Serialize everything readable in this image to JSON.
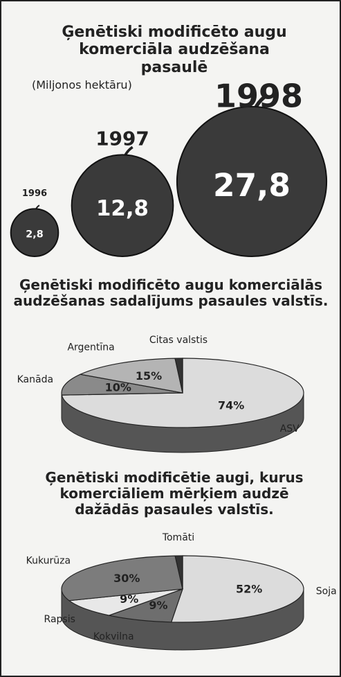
{
  "chart_data": [
    {
      "type": "pictogram",
      "title": "Ģenētiski modificēto augu komerciāla audzēšana pasaulē",
      "subtitle": "(Miljonos hektāru)",
      "categories": [
        "1996",
        "1997",
        "1998"
      ],
      "values": [
        2.8,
        12.8,
        27.8
      ],
      "value_labels": [
        "2,8",
        "12,8",
        "27,8"
      ],
      "color": "#3a3a3a"
    },
    {
      "type": "pie",
      "title": "Ģenētiski modificēto augu komerciālās audzēšanas sadalījums pasaules valstīs.",
      "categories": [
        "ASV",
        "Kanāda",
        "Argentīna",
        "Citas valstis"
      ],
      "values": [
        74,
        10,
        15,
        1
      ],
      "value_labels": [
        "74%",
        "10%",
        "15%",
        null
      ],
      "colors": [
        "#dcdcdc",
        "#8a8a8a",
        "#b4b4b4",
        "#333333"
      ]
    },
    {
      "type": "pie",
      "title": "Ģenētiski modificētie augi, kurus komerciāliem mērķiem audzē dažādās pasaules valstīs.",
      "categories": [
        "Soja",
        "Kokvilna",
        "Rapsis",
        "Kukurūza",
        "Tomāti"
      ],
      "values": [
        52,
        9,
        9,
        30,
        1
      ],
      "value_labels": [
        "52%",
        "9%",
        "9%",
        "30%",
        null
      ],
      "colors": [
        "#dcdcdc",
        "#6e6e6e",
        "#e8e8e8",
        "#7c7c7c",
        "#333333"
      ]
    }
  ]
}
